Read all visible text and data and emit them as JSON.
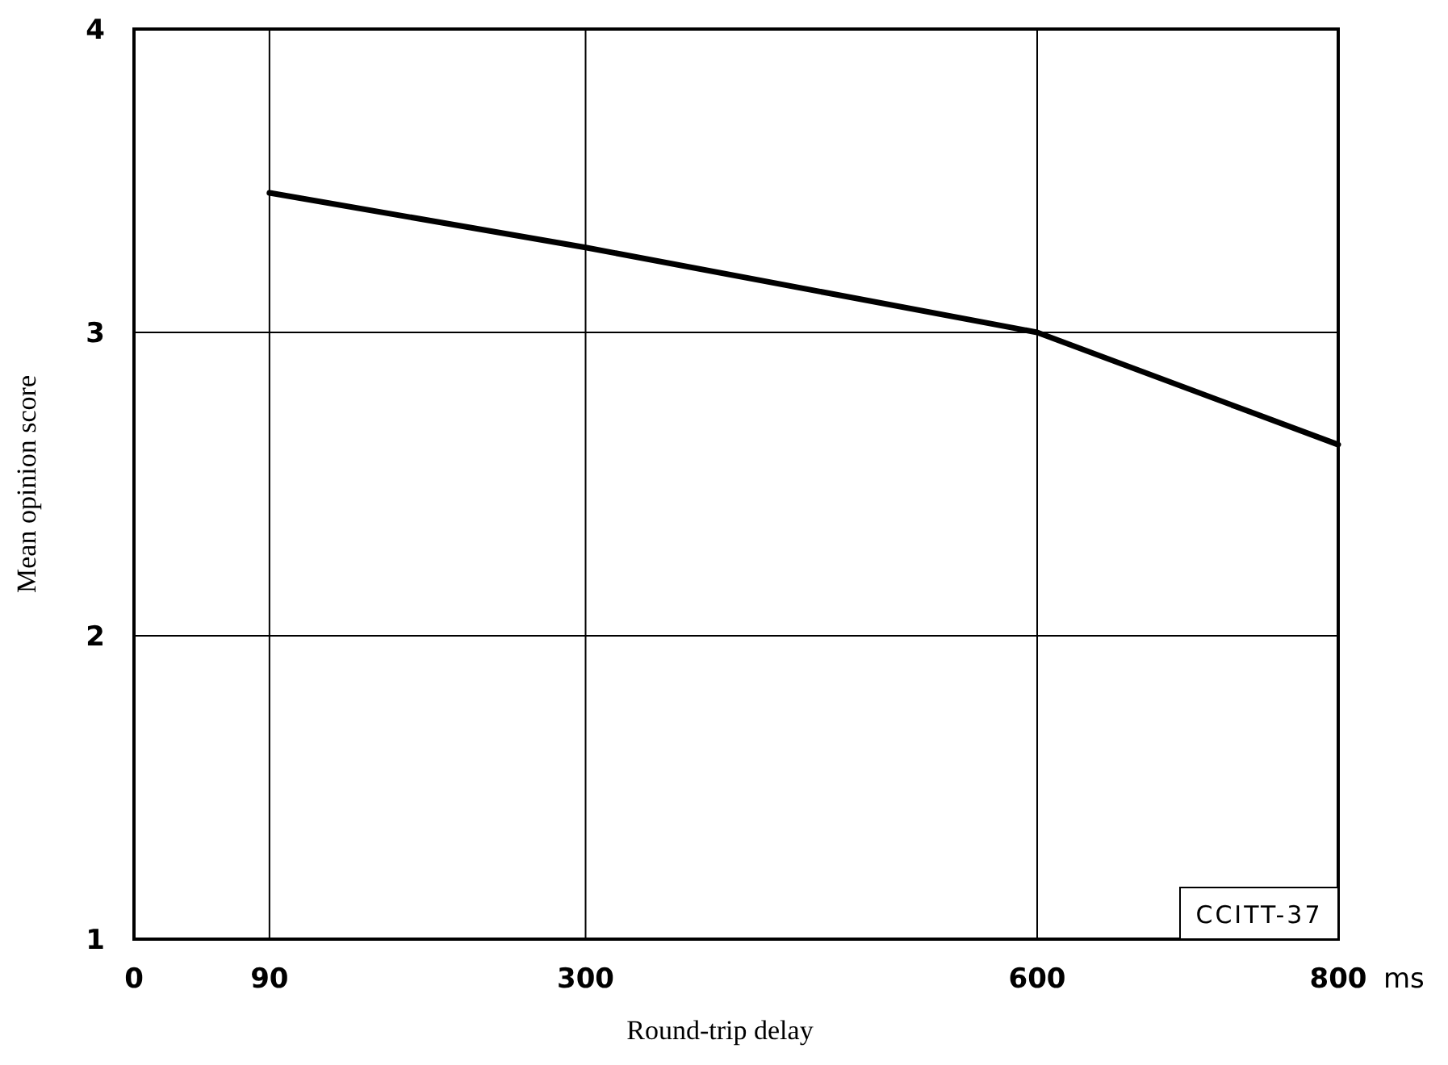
{
  "chart_data": {
    "type": "line",
    "xlabel": "Round-trip delay",
    "ylabel": "Mean opinion score",
    "x": [
      90,
      300,
      600,
      800
    ],
    "series": [
      {
        "color": "#000000",
        "values": [
          3.46,
          3.28,
          3.0,
          2.63
        ]
      }
    ],
    "xlim": [
      0,
      800
    ],
    "xticks": [
      0,
      90,
      300,
      600,
      800
    ],
    "ylim": [
      1,
      4
    ],
    "yticks": [
      1,
      2,
      3,
      4
    ],
    "grid": true,
    "marker": "none",
    "line_style": "solid",
    "annotations": [
      "ms",
      "CCITT-37"
    ]
  }
}
